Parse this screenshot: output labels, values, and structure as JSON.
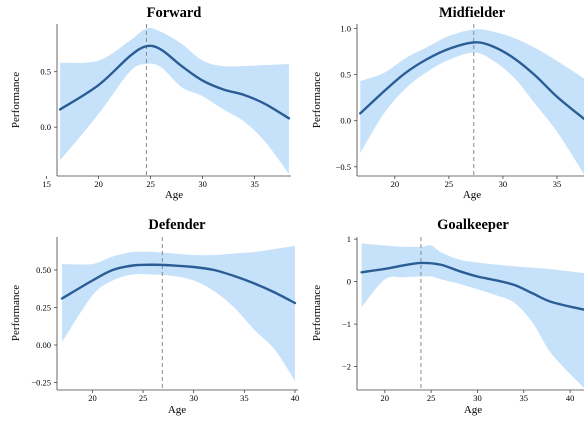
{
  "chart_data": [
    {
      "type": "line",
      "title": "Forward",
      "xlabel": "Age",
      "ylabel": "Performance",
      "xlim": [
        16,
        38.5
      ],
      "ylim": [
        -0.44,
        0.93
      ],
      "xticks": [
        15,
        20,
        25,
        30,
        35
      ],
      "yticks": [
        0.0,
        0.5
      ],
      "ytick_labels": [
        "0.0",
        "0.5"
      ],
      "peak_age": 24.6,
      "series": [
        {
          "x": [
            16.3,
            20,
            23,
            24.6,
            26,
            28,
            30,
            32,
            34,
            36,
            38.3
          ],
          "values": [
            0.16,
            0.38,
            0.64,
            0.73,
            0.7,
            0.55,
            0.42,
            0.34,
            0.29,
            0.21,
            0.08
          ]
        }
      ],
      "band": {
        "x": [
          16.3,
          20,
          23,
          24.6,
          26,
          28,
          30,
          32,
          34,
          36,
          38.3
        ],
        "upper": [
          0.58,
          0.6,
          0.78,
          0.89,
          0.86,
          0.75,
          0.6,
          0.55,
          0.55,
          0.56,
          0.57
        ],
        "lower": [
          -0.3,
          0.12,
          0.5,
          0.57,
          0.54,
          0.36,
          0.28,
          0.16,
          0.05,
          -0.13,
          -0.42
        ]
      }
    },
    {
      "type": "line",
      "title": "Midfielder",
      "xlabel": "Age",
      "ylabel": "Performance",
      "xlim": [
        16.5,
        37.5
      ],
      "ylim": [
        -0.6,
        1.05
      ],
      "xticks": [
        20,
        25,
        30,
        35
      ],
      "yticks": [
        -0.5,
        0.0,
        0.5,
        1.0
      ],
      "ytick_labels": [
        "−0.5",
        "0.0",
        "0.5",
        "1.0"
      ],
      "peak_age": 27.3,
      "series": [
        {
          "x": [
            16.8,
            19,
            21,
            23,
            25,
            27.3,
            29,
            31,
            33,
            35,
            37.5
          ],
          "values": [
            0.08,
            0.32,
            0.52,
            0.67,
            0.78,
            0.85,
            0.81,
            0.68,
            0.49,
            0.26,
            0.02
          ]
        }
      ],
      "band": {
        "x": [
          16.8,
          19,
          21,
          23,
          25,
          27.3,
          29,
          31,
          33,
          35,
          37.5
        ],
        "upper": [
          0.43,
          0.52,
          0.68,
          0.8,
          0.92,
          0.99,
          0.97,
          0.9,
          0.79,
          0.65,
          0.46
        ],
        "lower": [
          -0.35,
          0.08,
          0.35,
          0.53,
          0.66,
          0.74,
          0.66,
          0.47,
          0.18,
          -0.12,
          -0.58
        ]
      }
    },
    {
      "type": "line",
      "title": "Defender",
      "xlabel": "Age",
      "ylabel": "Performance",
      "xlim": [
        16.5,
        40.3
      ],
      "ylim": [
        -0.3,
        0.72
      ],
      "xticks": [
        20,
        25,
        30,
        35,
        40
      ],
      "yticks": [
        -0.25,
        0.0,
        0.25,
        0.5
      ],
      "ytick_labels": [
        "−0.25",
        "0.00",
        "0.25",
        "0.50"
      ],
      "peak_age": 26.9,
      "series": [
        {
          "x": [
            17,
            20,
            22,
            24,
            26,
            28,
            30,
            32,
            34,
            36,
            38,
            40
          ],
          "values": [
            0.31,
            0.43,
            0.5,
            0.53,
            0.535,
            0.53,
            0.52,
            0.5,
            0.46,
            0.41,
            0.35,
            0.28
          ]
        }
      ],
      "band": {
        "x": [
          17,
          20,
          22,
          24,
          26,
          28,
          30,
          32,
          34,
          36,
          38,
          40
        ],
        "upper": [
          0.54,
          0.54,
          0.59,
          0.62,
          0.62,
          0.61,
          0.6,
          0.6,
          0.61,
          0.62,
          0.64,
          0.66
        ],
        "lower": [
          0.02,
          0.33,
          0.43,
          0.47,
          0.47,
          0.46,
          0.43,
          0.36,
          0.25,
          0.1,
          -0.03,
          -0.24
        ]
      }
    },
    {
      "type": "line",
      "title": "Goalkeeper",
      "xlabel": "Age",
      "ylabel": "Performance",
      "xlim": [
        17,
        41.5
      ],
      "ylim": [
        -2.55,
        1.05
      ],
      "xticks": [
        20,
        25,
        30,
        35,
        40
      ],
      "yticks": [
        -2,
        -1,
        0,
        1
      ],
      "ytick_labels": [
        "−2",
        "−1",
        "0",
        "1"
      ],
      "peak_age": 23.9,
      "series": [
        {
          "x": [
            17.5,
            20,
            22,
            23.9,
            26,
            28,
            30,
            32,
            34,
            36,
            38,
            41.5
          ],
          "values": [
            0.22,
            0.3,
            0.38,
            0.44,
            0.4,
            0.25,
            0.12,
            0.03,
            -0.08,
            -0.28,
            -0.48,
            -0.66
          ]
        }
      ],
      "band": {
        "x": [
          17.5,
          20,
          22,
          23.9,
          25,
          26,
          28,
          30,
          32,
          34,
          36,
          38,
          41.5
        ],
        "upper": [
          0.9,
          0.85,
          0.82,
          0.82,
          0.85,
          0.7,
          0.52,
          0.45,
          0.4,
          0.36,
          0.33,
          0.29,
          0.2
        ],
        "lower": [
          -0.6,
          0.05,
          0.1,
          0.12,
          0.12,
          0.06,
          -0.05,
          -0.18,
          -0.32,
          -0.5,
          -0.98,
          -1.7,
          -2.5
        ]
      }
    }
  ]
}
